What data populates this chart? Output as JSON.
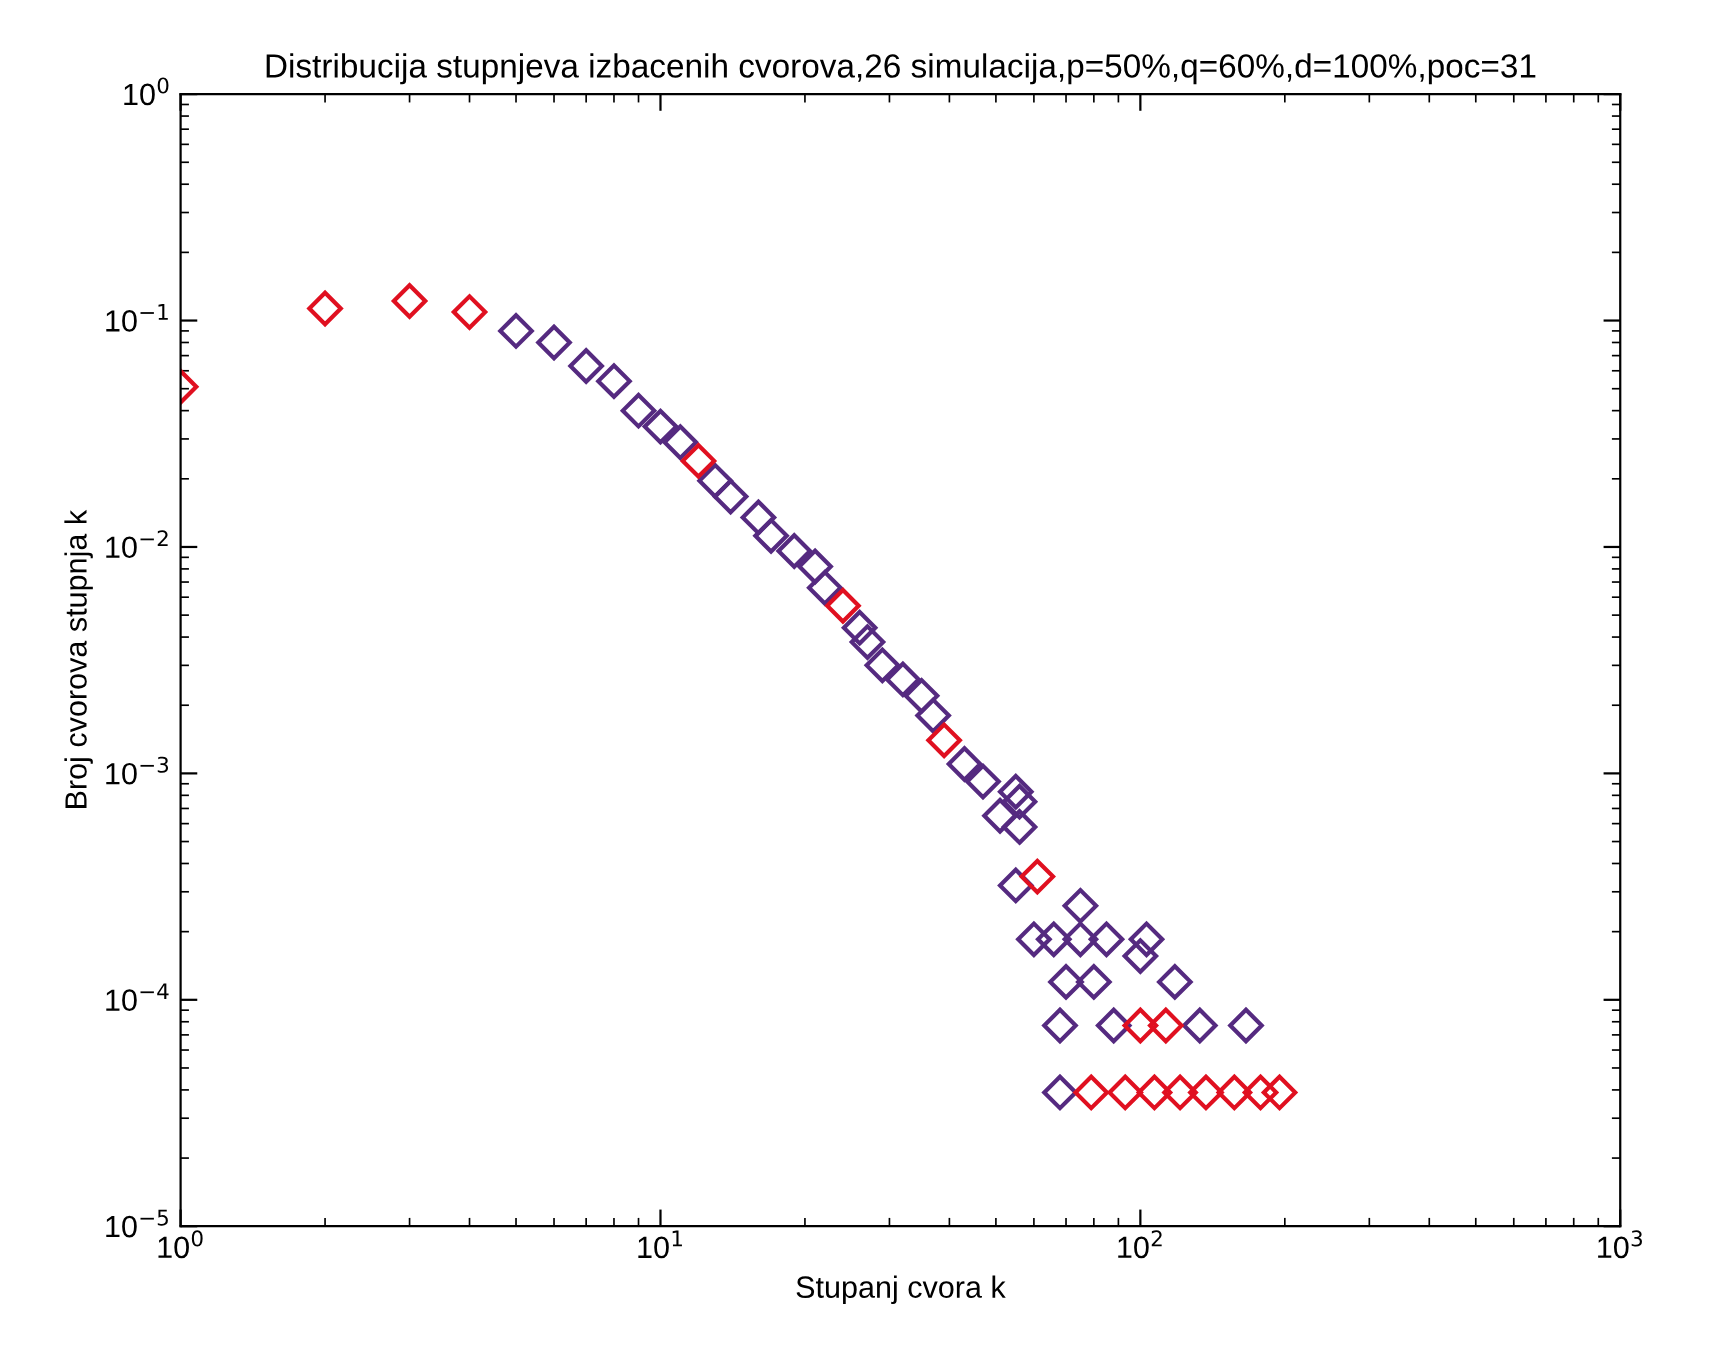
{
  "chart_data": {
    "type": "scatter",
    "title": "Distribucija stupnjeva izbacenih cvorova,26 simulacija,p=50%,q=60%,d=100%,poc=31",
    "xlabel": "Stupanj cvora k",
    "ylabel": "Broj cvorova stupnja k",
    "log": "xy",
    "marker": "diamond",
    "grid": false,
    "xlim": [
      1,
      1000
    ],
    "ylim": [
      1e-05,
      1
    ],
    "xticks": [
      {
        "value": 1,
        "label": "10$^{0}$"
      },
      {
        "value": 10,
        "label": "10$^{1}$"
      },
      {
        "value": 100,
        "label": "10$^{2}$"
      },
      {
        "value": 1000,
        "label": "10$^{3}$"
      }
    ],
    "yticks": [
      {
        "value": 1e-05,
        "label": "10$^{−5}$"
      },
      {
        "value": 0.0001,
        "label": "10$^{−4}$"
      },
      {
        "value": 0.001,
        "label": "10$^{−3}$"
      },
      {
        "value": 0.01,
        "label": "10$^{−2}$"
      },
      {
        "value": 0.1,
        "label": "10$^{−1}$"
      },
      {
        "value": 1,
        "label": "10$^{0}$"
      }
    ],
    "series": [
      {
        "color": "#552a80",
        "x": [
          5,
          6,
          7,
          8,
          9,
          10,
          11,
          13,
          14,
          16,
          17,
          19,
          21,
          22,
          26,
          27,
          29,
          32,
          35,
          37,
          43,
          47,
          51,
          55,
          55,
          56,
          56,
          60,
          66,
          70,
          75,
          75,
          80,
          85,
          100,
          103,
          118,
          68,
          88,
          133,
          166,
          68
        ],
        "values": [
          0.09,
          0.08,
          0.063,
          0.054,
          0.04,
          0.034,
          0.029,
          0.0196,
          0.0167,
          0.0135,
          0.0112,
          0.0096,
          0.0082,
          0.0066,
          0.0044,
          0.0038,
          0.003,
          0.0026,
          0.0022,
          0.0018,
          0.0011,
          0.00092,
          0.00065,
          0.00083,
          0.00032,
          0.00075,
          0.00058,
          0.000185,
          0.000185,
          0.00012,
          0.00026,
          0.000185,
          0.00012,
          0.000185,
          0.000156,
          0.000185,
          0.00012,
          7.7e-05,
          7.7e-05,
          7.7e-05,
          7.7e-05,
          3.9e-05
        ]
      },
      {
        "color": "#e01020",
        "x": [
          1,
          2,
          3,
          4,
          12,
          24,
          39,
          61,
          100,
          113,
          79,
          93,
          107,
          121,
          137,
          157,
          178,
          195
        ],
        "values": [
          0.051,
          0.113,
          0.122,
          0.109,
          0.024,
          0.0055,
          0.0014,
          0.00035,
          7.7e-05,
          7.7e-05,
          3.9e-05,
          3.9e-05,
          3.9e-05,
          3.9e-05,
          3.9e-05,
          3.9e-05,
          3.9e-05,
          3.9e-05
        ]
      }
    ]
  }
}
